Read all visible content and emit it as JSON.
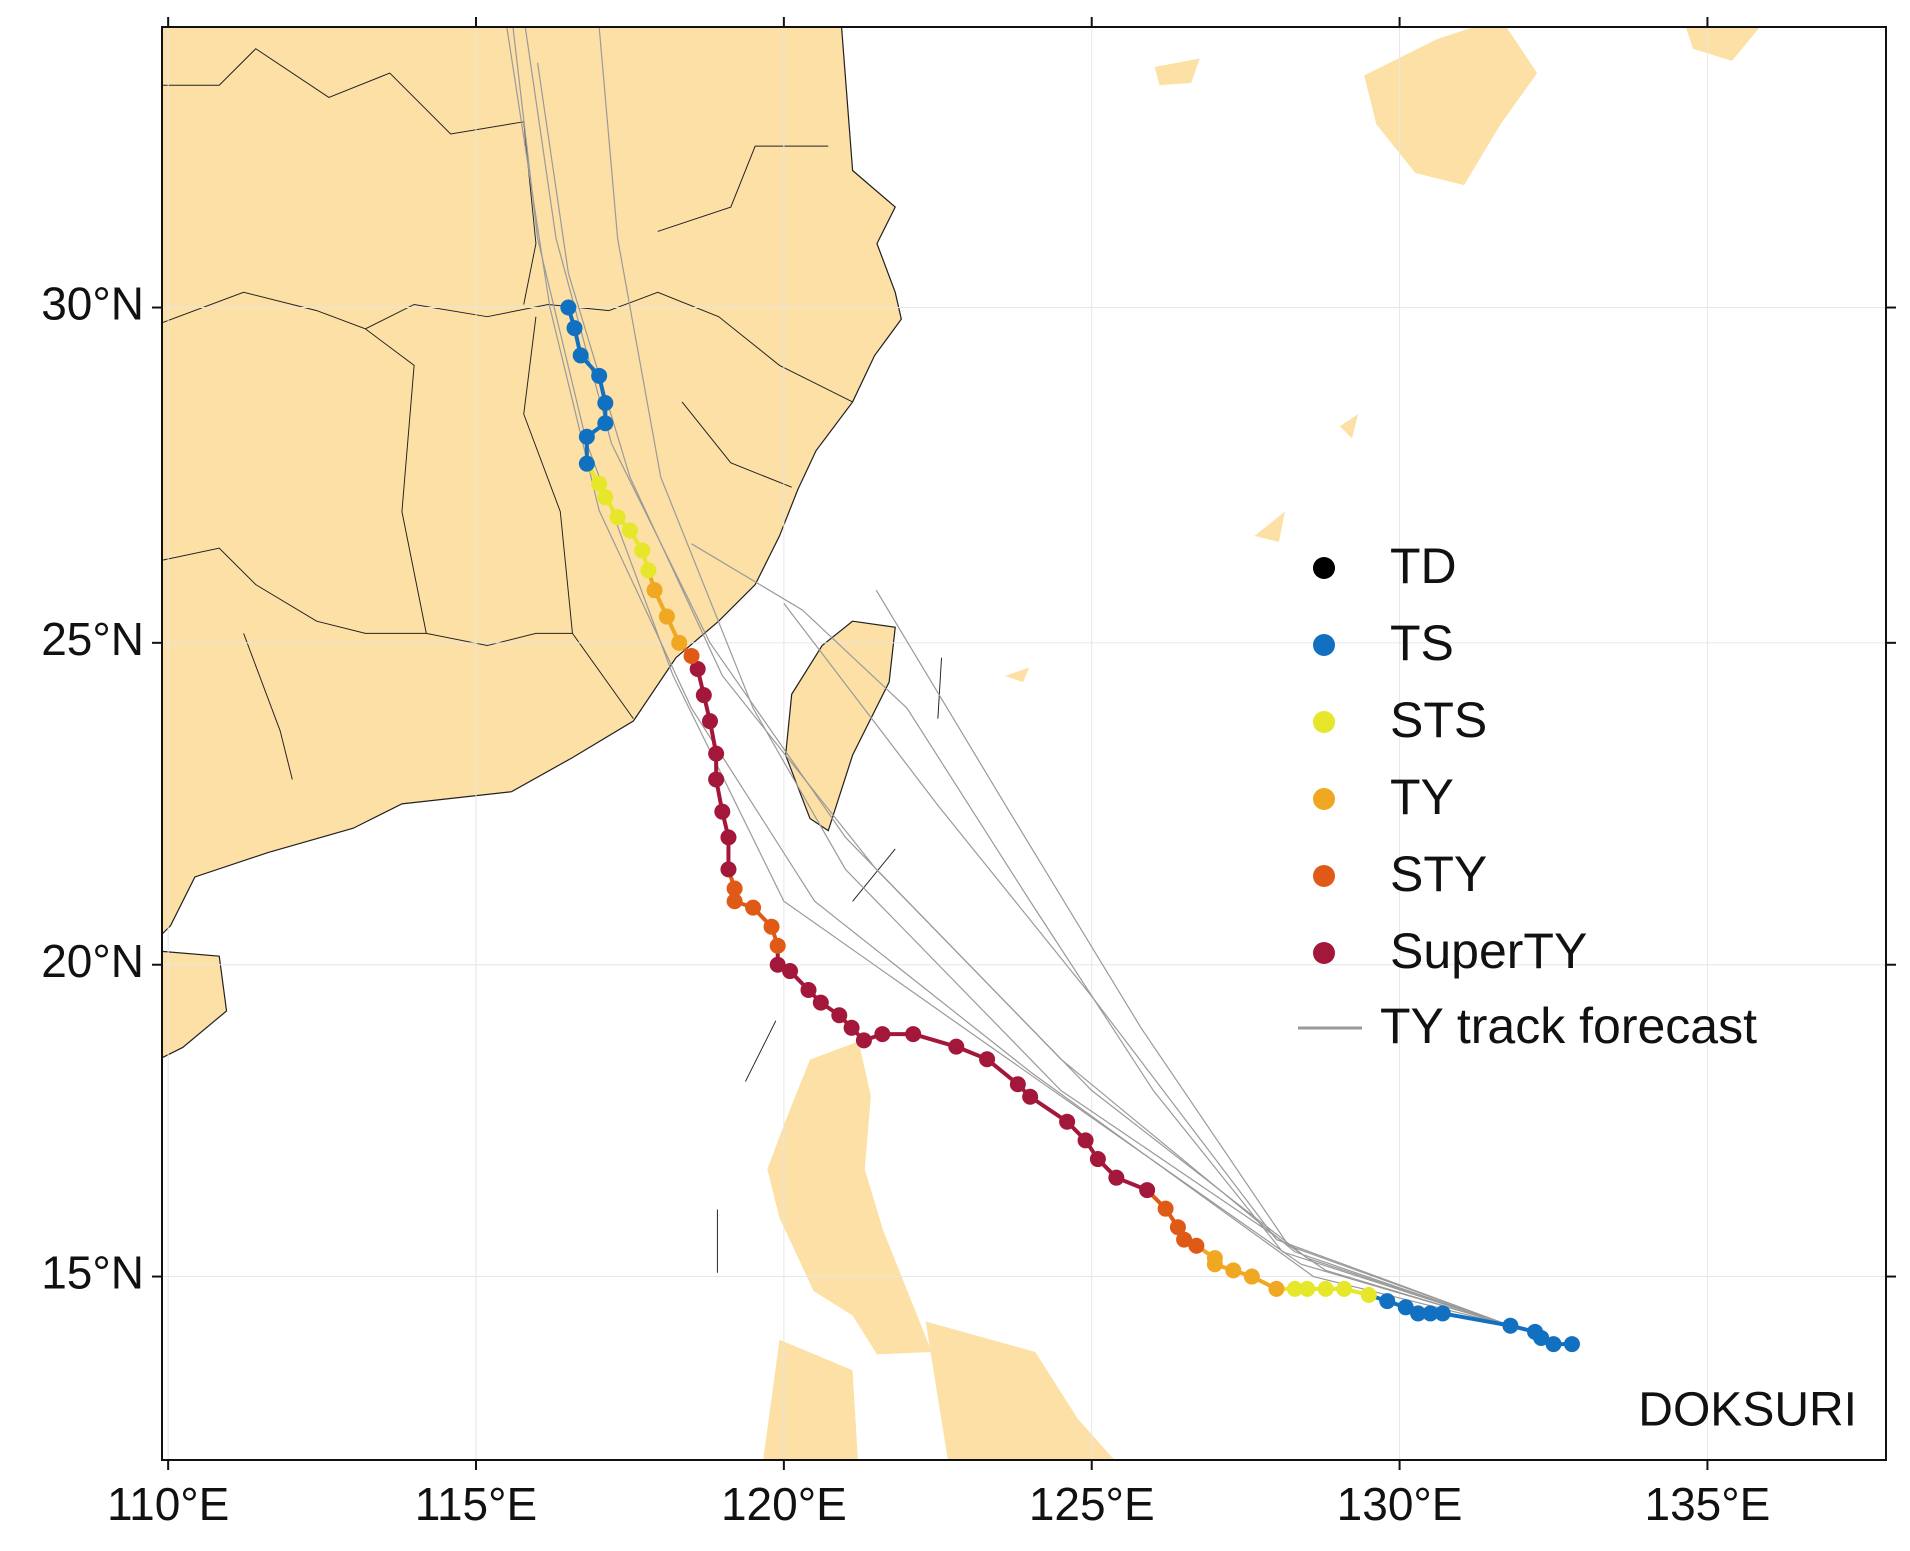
{
  "chart_data": {
    "type": "map",
    "projection": "mercator",
    "xlim": [
      109.9,
      137.9
    ],
    "ylim": [
      12,
      34
    ],
    "xticks": [
      {
        "value": 110,
        "label": "110°E"
      },
      {
        "value": 115,
        "label": "115°E"
      },
      {
        "value": 120,
        "label": "120°E"
      },
      {
        "value": 125,
        "label": "125°E"
      },
      {
        "value": 130,
        "label": "130°E"
      },
      {
        "value": 135,
        "label": "135°E"
      }
    ],
    "yticks": [
      {
        "value": 15,
        "label": "15°N"
      },
      {
        "value": 20,
        "label": "20°N"
      },
      {
        "value": 25,
        "label": "25°N"
      },
      {
        "value": 30,
        "label": "30°N"
      }
    ],
    "grid": true,
    "stages": [
      {
        "name": "TD",
        "color": "#000000"
      },
      {
        "name": "TS",
        "color": "#1170c0"
      },
      {
        "name": "STS",
        "color": "#e6e62a"
      },
      {
        "name": "TY",
        "color": "#f0a722"
      },
      {
        "name": "STY",
        "color": "#e05a17"
      },
      {
        "name": "SuperTY",
        "color": "#a3173a"
      }
    ],
    "track": {
      "lon": [
        132.8,
        132.5,
        132.3,
        132.2,
        131.8,
        130.7,
        130.5,
        130.3,
        130.1,
        129.8,
        129.5,
        129.1,
        128.8,
        128.5,
        128.3,
        128.0,
        127.6,
        127.3,
        127.0,
        127.0,
        126.7,
        126.5,
        126.4,
        126.2,
        125.9,
        125.4,
        125.1,
        124.9,
        124.6,
        124.0,
        123.8,
        123.3,
        122.8,
        122.1,
        121.6,
        121.3,
        121.1,
        120.9,
        120.6,
        120.4,
        120.1,
        119.9,
        119.9,
        119.8,
        119.5,
        119.2,
        119.2,
        119.1,
        119.1,
        119.0,
        118.9,
        118.9,
        118.8,
        118.7,
        118.6,
        118.5,
        118.3,
        118.1,
        117.9,
        117.8,
        117.7,
        117.5,
        117.3,
        117.1,
        117.0,
        116.8,
        116.8,
        117.1,
        117.1,
        117.0,
        116.7,
        116.6,
        116.5
      ],
      "lat": [
        13.9,
        13.9,
        14.0,
        14.1,
        14.2,
        14.4,
        14.4,
        14.4,
        14.5,
        14.6,
        14.7,
        14.8,
        14.8,
        14.8,
        14.8,
        14.8,
        15.0,
        15.1,
        15.2,
        15.3,
        15.5,
        15.6,
        15.8,
        16.1,
        16.4,
        16.6,
        16.9,
        17.2,
        17.5,
        17.9,
        18.1,
        18.5,
        18.7,
        18.9,
        18.9,
        18.8,
        19.0,
        19.2,
        19.4,
        19.6,
        19.9,
        20.0,
        20.3,
        20.6,
        20.9,
        21.0,
        21.2,
        21.5,
        22.0,
        22.4,
        22.9,
        23.3,
        23.8,
        24.2,
        24.6,
        24.8,
        25.0,
        25.4,
        25.8,
        26.1,
        26.4,
        26.7,
        26.9,
        27.2,
        27.4,
        27.7,
        28.1,
        28.3,
        28.6,
        29.0,
        29.3,
        29.7,
        30.0
      ],
      "stage": [
        "TS",
        "TS",
        "TS",
        "TS",
        "TS",
        "TS",
        "TS",
        "TS",
        "TS",
        "TS",
        "STS",
        "STS",
        "STS",
        "STS",
        "STS",
        "TY",
        "TY",
        "TY",
        "TY",
        "TY",
        "STY",
        "STY",
        "STY",
        "STY",
        "SuperTY",
        "SuperTY",
        "SuperTY",
        "SuperTY",
        "SuperTY",
        "SuperTY",
        "SuperTY",
        "SuperTY",
        "SuperTY",
        "SuperTY",
        "SuperTY",
        "SuperTY",
        "SuperTY",
        "SuperTY",
        "SuperTY",
        "SuperTY",
        "SuperTY",
        "SuperTY",
        "STY",
        "STY",
        "STY",
        "STY",
        "STY",
        "SuperTY",
        "SuperTY",
        "SuperTY",
        "SuperTY",
        "SuperTY",
        "SuperTY",
        "SuperTY",
        "SuperTY",
        "STY",
        "TY",
        "TY",
        "TY",
        "STS",
        "STS",
        "STS",
        "STS",
        "STS",
        "STS",
        "TS",
        "TS",
        "TS",
        "TS",
        "TS",
        "TS",
        "TS",
        "TS"
      ]
    },
    "forecast": {
      "name": "TY track forecast",
      "color": "#9a9a9a",
      "tracks": [
        {
          "lon": [
            131.8,
            128.5,
            125.0,
            121.5,
            119.0,
            117.5,
            116.5,
            116.0
          ],
          "lat": [
            14.2,
            15.3,
            18.0,
            21.5,
            24.5,
            27.5,
            30.5,
            33.5
          ]
        },
        {
          "lon": [
            131.8,
            128.3,
            124.5,
            121.0,
            118.8,
            117.2,
            116.3,
            115.8
          ],
          "lat": [
            14.2,
            15.4,
            18.5,
            22.0,
            25.0,
            28.0,
            31.0,
            34.0
          ]
        },
        {
          "lon": [
            131.8,
            128.2,
            125.8,
            123.6,
            121.5
          ],
          "lat": [
            14.2,
            15.5,
            19.0,
            22.5,
            25.8
          ]
        },
        {
          "lon": [
            131.8,
            128.0,
            125.0,
            122.5,
            120.0
          ],
          "lat": [
            14.2,
            15.6,
            19.5,
            22.5,
            25.6
          ]
        },
        {
          "lon": [
            131.8,
            128.6,
            124.0,
            120.5,
            118.5,
            117.0,
            116.2,
            115.5
          ],
          "lat": [
            14.2,
            15.0,
            18.3,
            21.0,
            24.0,
            27.0,
            30.0,
            34.0
          ]
        },
        {
          "lon": [
            131.8,
            128.4,
            123.5,
            120.0,
            118.2,
            116.8,
            116.0,
            115.6
          ],
          "lat": [
            14.2,
            15.2,
            18.6,
            21.0,
            24.5,
            28.0,
            31.0,
            34.0
          ]
        },
        {
          "lon": [
            131.8,
            128.8,
            124.5,
            121.0,
            119.5,
            118.0,
            117.3,
            117.0
          ],
          "lat": [
            14.2,
            15.1,
            18.0,
            21.5,
            24.0,
            27.5,
            31.0,
            34.0
          ]
        },
        {
          "lon": [
            131.8,
            128.1,
            126.0,
            124.0,
            122.0,
            120.3,
            118.5
          ],
          "lat": [
            14.2,
            15.4,
            18.0,
            21.0,
            24.0,
            25.5,
            26.5
          ]
        }
      ]
    },
    "label": "DOKSURI"
  }
}
